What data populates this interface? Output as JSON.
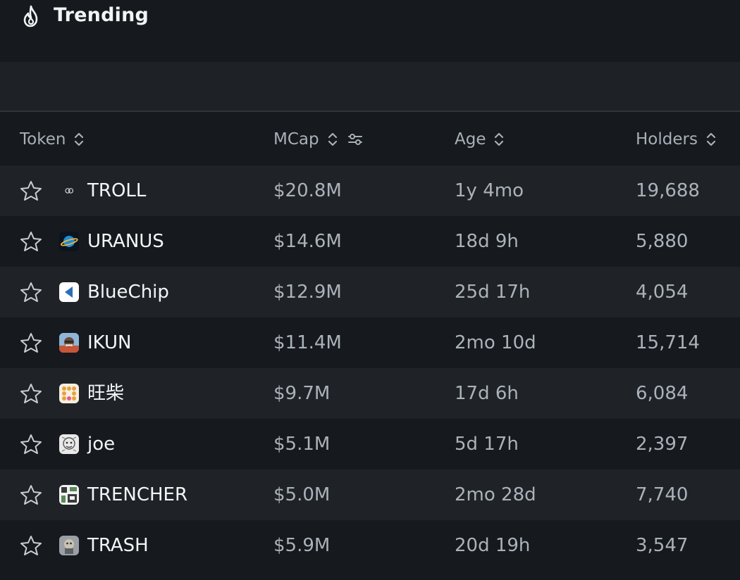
{
  "header": {
    "title": "Trending",
    "icon": "flame-icon"
  },
  "columns": {
    "token": "Token",
    "mcap": "MCap",
    "age": "Age",
    "holders": "Holders"
  },
  "rows": [
    {
      "name": "TROLL",
      "mcap": "$20.8M",
      "age": "1y 4mo",
      "holders": "19,688"
    },
    {
      "name": "URANUS",
      "mcap": "$14.6M",
      "age": "18d 9h",
      "holders": "5,880"
    },
    {
      "name": "BlueChip",
      "mcap": "$12.9M",
      "age": "25d 17h",
      "holders": "4,054"
    },
    {
      "name": "IKUN",
      "mcap": "$11.4M",
      "age": "2mo 10d",
      "holders": "15,714"
    },
    {
      "name": "旺柴",
      "mcap": "$9.7M",
      "age": "17d 6h",
      "holders": "6,084"
    },
    {
      "name": "joe",
      "mcap": "$5.1M",
      "age": "5d 17h",
      "holders": "2,397"
    },
    {
      "name": "TRENCHER",
      "mcap": "$5.0M",
      "age": "2mo 28d",
      "holders": "7,740"
    },
    {
      "name": "TRASH",
      "mcap": "$5.9M",
      "age": "20d 19h",
      "holders": "3,547"
    }
  ],
  "colors": {
    "background": "#16191d",
    "row_alt": "#1f2327",
    "text_primary": "#f4f6f8",
    "text_secondary": "#aab2ba"
  }
}
